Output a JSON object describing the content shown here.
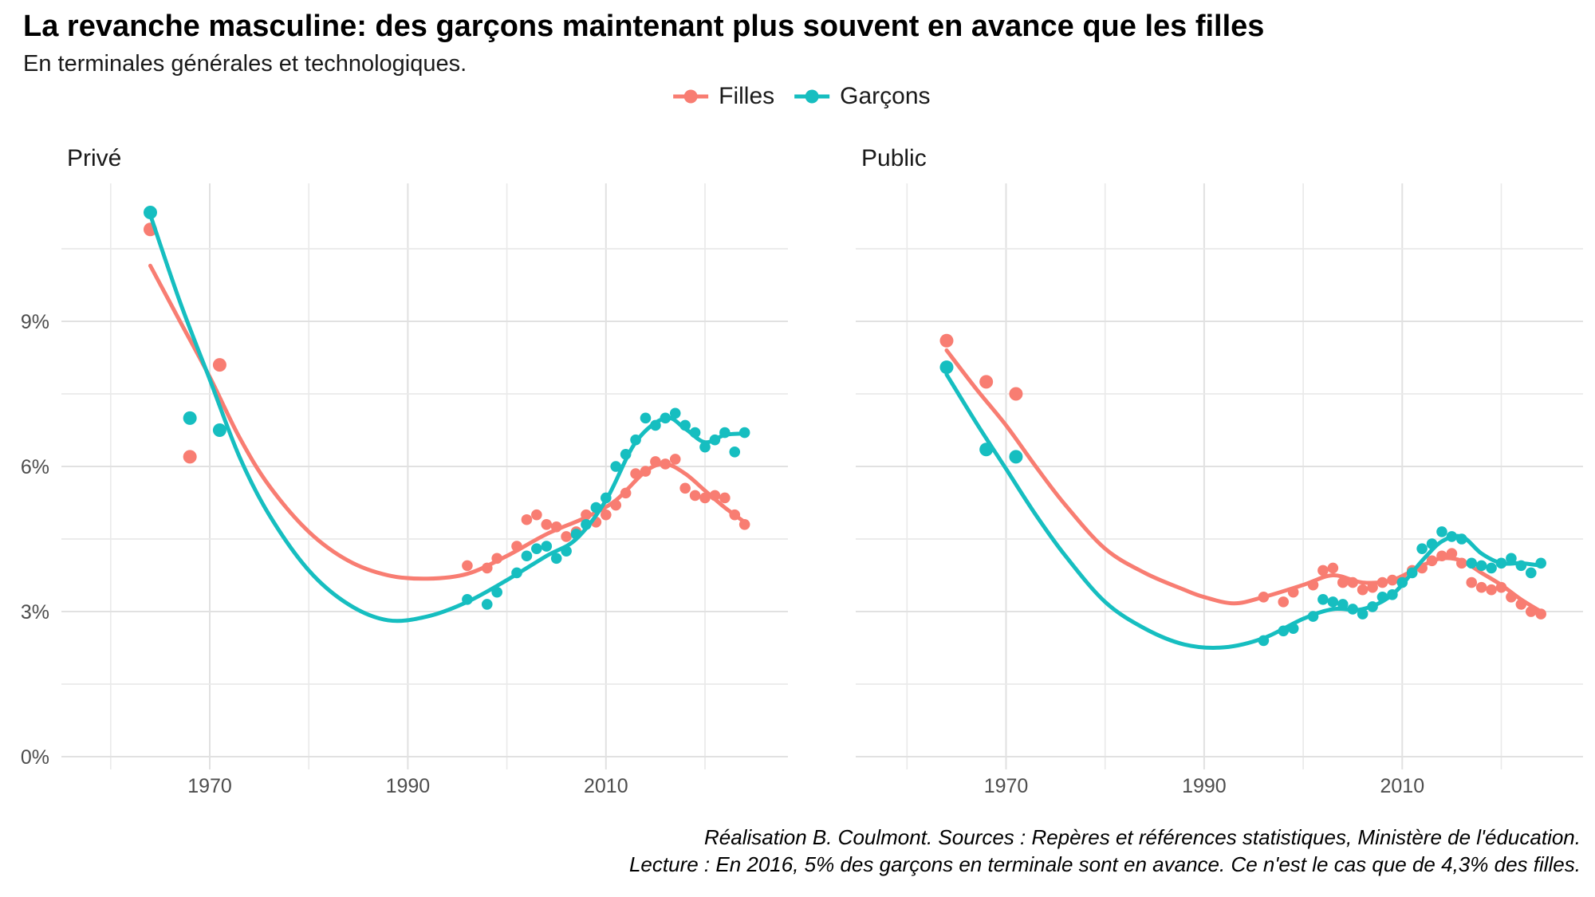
{
  "title": "La revanche masculine: des garçons maintenant plus souvent en avance que les filles",
  "subtitle": "En terminales générales et technologiques.",
  "legend": {
    "items": [
      {
        "label": "Filles",
        "color": "#F87D72"
      },
      {
        "label": "Garçons",
        "color": "#16BEC0"
      }
    ]
  },
  "caption": {
    "line1": "Réalisation B. Coulmont. Sources : Repères et références statistiques, Ministère de l'éducation.",
    "line2": "Lecture : En 2016, 5% des garçons en terminale sont en avance. Ce n'est le cas que de 4,3% des filles."
  },
  "colors": {
    "filles": "#F87D72",
    "garcons": "#16BEC0",
    "grid_major": "#E1E1E1",
    "grid_minor": "#EAEAEA",
    "axis_text": "#4D4D4D",
    "text": "#1A1A1A"
  },
  "axes": {
    "x_tick_years": [
      1970,
      1990,
      2010
    ],
    "x_gridline_years": [
      1960,
      1970,
      1980,
      1990,
      2000,
      2010,
      2020
    ],
    "y_ticks": [
      {
        "label": "0%",
        "value": 0
      },
      {
        "label": "3%",
        "value": 3
      },
      {
        "label": "6%",
        "value": 6
      },
      {
        "label": "9%",
        "value": 9
      }
    ],
    "y_minor_values": [
      1.5,
      4.5,
      7.5,
      10.5
    ],
    "y_unit": "%",
    "x_range": [
      1955,
      2028
    ],
    "y_range": [
      0,
      11.8
    ],
    "grid": true
  },
  "chart_data": [
    {
      "facet": "Privé",
      "type": "scatter",
      "smooth_overlay": true,
      "x_unit": "year",
      "series": [
        {
          "name": "Filles",
          "color": "#F87D72",
          "points": [
            [
              1964,
              10.9
            ],
            [
              1968,
              6.2
            ],
            [
              1971,
              8.1
            ],
            [
              1996,
              3.95
            ],
            [
              1998,
              3.9
            ],
            [
              1999,
              4.1
            ],
            [
              2001,
              4.35
            ],
            [
              2002,
              4.9
            ],
            [
              2003,
              5.0
            ],
            [
              2004,
              4.8
            ],
            [
              2005,
              4.75
            ],
            [
              2006,
              4.55
            ],
            [
              2007,
              4.65
            ],
            [
              2008,
              5.0
            ],
            [
              2009,
              4.85
            ],
            [
              2010,
              5.0
            ],
            [
              2011,
              5.2
            ],
            [
              2012,
              5.45
            ],
            [
              2013,
              5.85
            ],
            [
              2014,
              5.9
            ],
            [
              2015,
              6.1
            ],
            [
              2016,
              6.05
            ],
            [
              2017,
              6.15
            ],
            [
              2018,
              5.55
            ],
            [
              2019,
              5.4
            ],
            [
              2020,
              5.35
            ],
            [
              2021,
              5.4
            ],
            [
              2022,
              5.35
            ],
            [
              2023,
              5.0
            ],
            [
              2024,
              4.8
            ]
          ],
          "smooth": [
            [
              1964,
              10.15
            ],
            [
              1967,
              9.0
            ],
            [
              1970,
              7.85
            ],
            [
              1973,
              6.6
            ],
            [
              1976,
              5.6
            ],
            [
              1980,
              4.65
            ],
            [
              1984,
              4.05
            ],
            [
              1988,
              3.75
            ],
            [
              1992,
              3.68
            ],
            [
              1996,
              3.78
            ],
            [
              2000,
              4.15
            ],
            [
              2004,
              4.6
            ],
            [
              2008,
              4.95
            ],
            [
              2011,
              5.3
            ],
            [
              2014,
              5.9
            ],
            [
              2016,
              6.05
            ],
            [
              2018,
              5.85
            ],
            [
              2020,
              5.5
            ],
            [
              2022,
              5.15
            ],
            [
              2024,
              4.85
            ]
          ]
        },
        {
          "name": "Garçons",
          "color": "#16BEC0",
          "points": [
            [
              1964,
              11.25
            ],
            [
              1968,
              7.0
            ],
            [
              1971,
              6.75
            ],
            [
              1996,
              3.25
            ],
            [
              1998,
              3.15
            ],
            [
              1999,
              3.4
            ],
            [
              2001,
              3.8
            ],
            [
              2002,
              4.15
            ],
            [
              2003,
              4.3
            ],
            [
              2004,
              4.35
            ],
            [
              2005,
              4.1
            ],
            [
              2006,
              4.25
            ],
            [
              2007,
              4.6
            ],
            [
              2008,
              4.8
            ],
            [
              2009,
              5.15
            ],
            [
              2010,
              5.35
            ],
            [
              2011,
              6.0
            ],
            [
              2012,
              6.25
            ],
            [
              2013,
              6.55
            ],
            [
              2014,
              7.0
            ],
            [
              2015,
              6.85
            ],
            [
              2016,
              7.0
            ],
            [
              2017,
              7.1
            ],
            [
              2018,
              6.85
            ],
            [
              2019,
              6.7
            ],
            [
              2020,
              6.4
            ],
            [
              2021,
              6.55
            ],
            [
              2022,
              6.7
            ],
            [
              2023,
              6.3
            ],
            [
              2024,
              6.7
            ]
          ],
          "smooth": [
            [
              1964,
              11.2
            ],
            [
              1967,
              9.4
            ],
            [
              1970,
              7.8
            ],
            [
              1973,
              6.2
            ],
            [
              1976,
              5.0
            ],
            [
              1980,
              3.85
            ],
            [
              1984,
              3.15
            ],
            [
              1988,
              2.82
            ],
            [
              1992,
              2.9
            ],
            [
              1996,
              3.2
            ],
            [
              2000,
              3.65
            ],
            [
              2004,
              4.15
            ],
            [
              2007,
              4.5
            ],
            [
              2010,
              5.3
            ],
            [
              2013,
              6.5
            ],
            [
              2016,
              7.0
            ],
            [
              2018,
              6.78
            ],
            [
              2020,
              6.5
            ],
            [
              2022,
              6.65
            ],
            [
              2024,
              6.68
            ]
          ]
        }
      ]
    },
    {
      "facet": "Public",
      "type": "scatter",
      "smooth_overlay": true,
      "x_unit": "year",
      "series": [
        {
          "name": "Filles",
          "color": "#F87D72",
          "points": [
            [
              1964,
              8.6
            ],
            [
              1968,
              7.75
            ],
            [
              1971,
              7.5
            ],
            [
              1996,
              3.3
            ],
            [
              1998,
              3.2
            ],
            [
              1999,
              3.4
            ],
            [
              2001,
              3.55
            ],
            [
              2002,
              3.85
            ],
            [
              2003,
              3.9
            ],
            [
              2004,
              3.6
            ],
            [
              2005,
              3.6
            ],
            [
              2006,
              3.45
            ],
            [
              2007,
              3.5
            ],
            [
              2008,
              3.6
            ],
            [
              2009,
              3.65
            ],
            [
              2010,
              3.65
            ],
            [
              2011,
              3.85
            ],
            [
              2012,
              3.9
            ],
            [
              2013,
              4.05
            ],
            [
              2014,
              4.15
            ],
            [
              2015,
              4.2
            ],
            [
              2016,
              4.0
            ],
            [
              2017,
              3.6
            ],
            [
              2018,
              3.5
            ],
            [
              2019,
              3.45
            ],
            [
              2020,
              3.5
            ],
            [
              2021,
              3.3
            ],
            [
              2022,
              3.15
            ],
            [
              2023,
              3.0
            ],
            [
              2024,
              2.95
            ]
          ],
          "smooth": [
            [
              1964,
              8.4
            ],
            [
              1967,
              7.6
            ],
            [
              1970,
              6.85
            ],
            [
              1973,
              6.0
            ],
            [
              1976,
              5.2
            ],
            [
              1980,
              4.3
            ],
            [
              1984,
              3.8
            ],
            [
              1988,
              3.45
            ],
            [
              1990,
              3.3
            ],
            [
              1993,
              3.17
            ],
            [
              1996,
              3.3
            ],
            [
              2000,
              3.55
            ],
            [
              2003,
              3.75
            ],
            [
              2006,
              3.6
            ],
            [
              2009,
              3.65
            ],
            [
              2012,
              3.95
            ],
            [
              2014,
              4.1
            ],
            [
              2016,
              4.05
            ],
            [
              2018,
              3.8
            ],
            [
              2020,
              3.55
            ],
            [
              2022,
              3.25
            ],
            [
              2024,
              3.0
            ]
          ]
        },
        {
          "name": "Garçons",
          "color": "#16BEC0",
          "points": [
            [
              1964,
              8.05
            ],
            [
              1968,
              6.35
            ],
            [
              1971,
              6.2
            ],
            [
              1996,
              2.4
            ],
            [
              1998,
              2.6
            ],
            [
              1999,
              2.65
            ],
            [
              2001,
              2.9
            ],
            [
              2002,
              3.25
            ],
            [
              2003,
              3.2
            ],
            [
              2004,
              3.15
            ],
            [
              2005,
              3.05
            ],
            [
              2006,
              2.95
            ],
            [
              2007,
              3.1
            ],
            [
              2008,
              3.3
            ],
            [
              2009,
              3.35
            ],
            [
              2010,
              3.6
            ],
            [
              2011,
              3.8
            ],
            [
              2012,
              4.3
            ],
            [
              2013,
              4.4
            ],
            [
              2014,
              4.65
            ],
            [
              2015,
              4.55
            ],
            [
              2016,
              4.5
            ],
            [
              2017,
              4.0
            ],
            [
              2018,
              3.95
            ],
            [
              2019,
              3.9
            ],
            [
              2020,
              4.0
            ],
            [
              2021,
              4.1
            ],
            [
              2022,
              3.95
            ],
            [
              2023,
              3.8
            ],
            [
              2024,
              4.0
            ]
          ],
          "smooth": [
            [
              1964,
              7.9
            ],
            [
              1967,
              6.9
            ],
            [
              1970,
              5.95
            ],
            [
              1973,
              5.0
            ],
            [
              1976,
              4.15
            ],
            [
              1980,
              3.2
            ],
            [
              1984,
              2.65
            ],
            [
              1988,
              2.32
            ],
            [
              1992,
              2.26
            ],
            [
              1996,
              2.45
            ],
            [
              2000,
              2.85
            ],
            [
              2003,
              3.05
            ],
            [
              2006,
              3.05
            ],
            [
              2009,
              3.35
            ],
            [
              2012,
              4.05
            ],
            [
              2014,
              4.45
            ],
            [
              2016,
              4.55
            ],
            [
              2018,
              4.2
            ],
            [
              2020,
              4.0
            ],
            [
              2022,
              4.0
            ],
            [
              2024,
              3.95
            ]
          ]
        }
      ]
    }
  ]
}
